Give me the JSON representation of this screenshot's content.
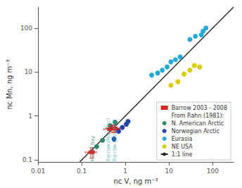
{
  "chart_data": {
    "type": "scatter",
    "xlabel": "nc V, ng m⁻³",
    "ylabel": "nc Mn, ng m⁻³",
    "log": true,
    "xlim": [
      0.01,
      300
    ],
    "ylim": [
      0.09,
      300
    ],
    "xticks": [
      0.01,
      0.1,
      1,
      10,
      100
    ],
    "yticks": [
      0.1,
      1,
      10,
      100
    ],
    "grid": false,
    "legend": "lower right",
    "legend_entries": [
      "Barrow 2003 - 2008",
      "From Rahn (1981):",
      "N. American Arctic",
      "Norwegian Arctic",
      "Eurasia",
      "NE USA",
      "1:1 line"
    ],
    "series": [
      {
        "name": "1:1 line",
        "type": "line",
        "color": "#222222",
        "line_style": "solid",
        "x": [
          0.09,
          300
        ],
        "values": [
          0.09,
          300
        ]
      },
      {
        "name": "Eurasia",
        "type": "scatter",
        "marker": "circle",
        "color": "#22aadd",
        "x": [
          4.0,
          5.5,
          7.0,
          9.0,
          11,
          14,
          18,
          30,
          40,
          55,
          60,
          70
        ],
        "values": [
          8.5,
          9.5,
          11,
          13,
          17,
          19,
          22,
          55,
          65,
          70,
          85,
          100
        ]
      },
      {
        "name": "NE USA",
        "type": "scatter",
        "marker": "circle",
        "color": "#ddcc00",
        "x": [
          11,
          16,
          22,
          30,
          38,
          50
        ],
        "values": [
          5.0,
          6.0,
          9.0,
          11,
          14,
          13
        ]
      },
      {
        "name": "N. American Arctic",
        "type": "scatter",
        "marker": "circle",
        "color": "#2a8a6a",
        "x": [
          0.22,
          0.3,
          0.45,
          0.58
        ],
        "values": [
          0.2,
          0.28,
          0.6,
          0.72
        ]
      },
      {
        "name": "Norwegian Arctic",
        "type": "scatter",
        "marker": "circle",
        "color": "#2244aa",
        "x": [
          0.55,
          0.7,
          0.85,
          1.05,
          1.15
        ],
        "values": [
          0.3,
          0.45,
          0.55,
          0.65,
          0.75
        ]
      },
      {
        "name": "Barrow 2003 - 2008",
        "type": "scatter",
        "marker": "square",
        "color": "#dd2222",
        "x": [
          0.16,
          0.18,
          0.42,
          0.48,
          0.52,
          0.55,
          0.58,
          0.6
        ],
        "values": [
          0.15,
          0.15,
          0.5,
          0.52,
          0.52,
          0.52,
          0.52,
          0.52
        ],
        "xerr": [
          0.04,
          0.04,
          0.1,
          0.12,
          0.12,
          0.13,
          0.14,
          0.15
        ],
        "yerr": [
          0.04,
          0.04,
          0.1,
          0.1,
          0.1,
          0.1,
          0.1,
          0.1
        ]
      }
    ],
    "annotations": [
      {
        "text": "Mould Bay",
        "x": 0.183,
        "y": 0.092,
        "color": "#2a8a6a"
      },
      {
        "text": "Barrow (Nov-Dec)",
        "x": 0.4,
        "y": 0.092,
        "color": "#2aadad"
      },
      {
        "text": "Barrow (Nov-Apr)",
        "x": 0.57,
        "y": 0.092,
        "color": "#2aadad"
      }
    ]
  }
}
